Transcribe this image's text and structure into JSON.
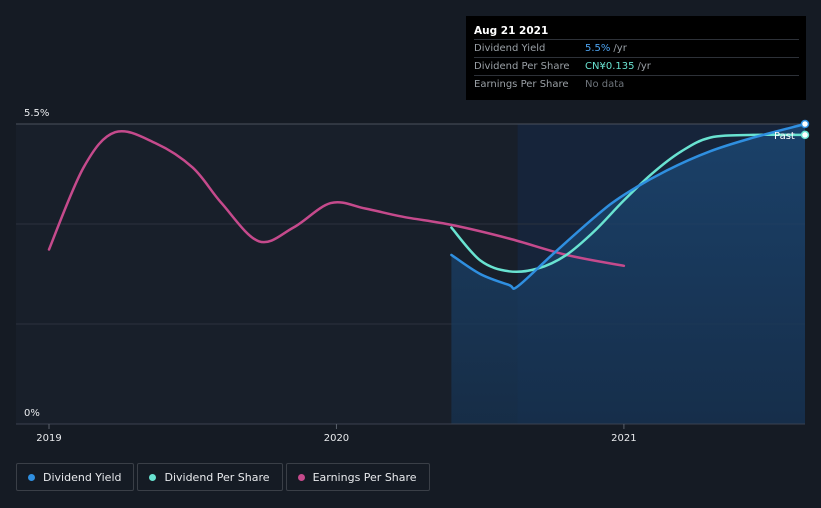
{
  "chart_data": {
    "type": "line",
    "title": "",
    "xlabel": "",
    "ylabel": "",
    "ylim": [
      0,
      5.5
    ],
    "y_ticks": [
      "5.5%",
      "0%"
    ],
    "x_ticks": [
      {
        "label": "2019",
        "t": 2019.0
      },
      {
        "label": "2020",
        "t": 2020.0
      },
      {
        "label": "2021",
        "t": 2021.0
      }
    ],
    "xlim": [
      2019.0,
      2021.63
    ],
    "past_region_start": 2020.63,
    "past_label": "Past",
    "series": [
      {
        "name": "Dividend Yield",
        "color": "#2f8fe0",
        "points": [
          [
            2020.4,
            3.1
          ],
          [
            2020.5,
            2.75
          ],
          [
            2020.6,
            2.55
          ],
          [
            2020.63,
            2.52
          ],
          [
            2020.75,
            3.1
          ],
          [
            2020.9,
            3.8
          ],
          [
            2021.0,
            4.2
          ],
          [
            2021.15,
            4.65
          ],
          [
            2021.3,
            5.0
          ],
          [
            2021.45,
            5.25
          ],
          [
            2021.63,
            5.5
          ]
        ],
        "area": true
      },
      {
        "name": "Dividend Per Share",
        "color": "#69e3d1",
        "points": [
          [
            2020.4,
            3.6
          ],
          [
            2020.5,
            3.0
          ],
          [
            2020.6,
            2.8
          ],
          [
            2020.7,
            2.85
          ],
          [
            2020.8,
            3.1
          ],
          [
            2020.9,
            3.55
          ],
          [
            2021.0,
            4.1
          ],
          [
            2021.1,
            4.6
          ],
          [
            2021.2,
            5.0
          ],
          [
            2021.3,
            5.25
          ],
          [
            2021.45,
            5.3
          ],
          [
            2021.63,
            5.3
          ]
        ],
        "area": false
      },
      {
        "name": "Earnings Per Share",
        "color": "#c54a8c",
        "points": [
          [
            2019.0,
            3.2
          ],
          [
            2019.12,
            4.7
          ],
          [
            2019.23,
            5.35
          ],
          [
            2019.37,
            5.15
          ],
          [
            2019.5,
            4.7
          ],
          [
            2019.6,
            4.05
          ],
          [
            2019.73,
            3.35
          ],
          [
            2019.85,
            3.6
          ],
          [
            2019.98,
            4.05
          ],
          [
            2020.1,
            3.95
          ],
          [
            2020.23,
            3.8
          ],
          [
            2020.4,
            3.65
          ],
          [
            2020.6,
            3.4
          ],
          [
            2020.8,
            3.1
          ],
          [
            2021.0,
            2.9
          ]
        ],
        "area": false
      }
    ],
    "markers": [
      {
        "series": "Dividend Yield",
        "t": 2021.63,
        "v": 5.5
      },
      {
        "series": "Dividend Per Share",
        "t": 2021.63,
        "v": 5.3
      }
    ]
  },
  "tooltip": {
    "date": "Aug 21 2021",
    "rows": [
      {
        "label": "Dividend Yield",
        "value": "5.5%",
        "unit": "/yr"
      },
      {
        "label": "Dividend Per Share",
        "value": "CN¥0.135",
        "unit": "/yr"
      },
      {
        "label": "Earnings Per Share",
        "value": "No data",
        "unit": ""
      }
    ]
  },
  "legend": [
    {
      "label": "Dividend Yield",
      "color": "#2f8fe0"
    },
    {
      "label": "Dividend Per Share",
      "color": "#69e3d1"
    },
    {
      "label": "Earnings Per Share",
      "color": "#c54a8c"
    }
  ]
}
